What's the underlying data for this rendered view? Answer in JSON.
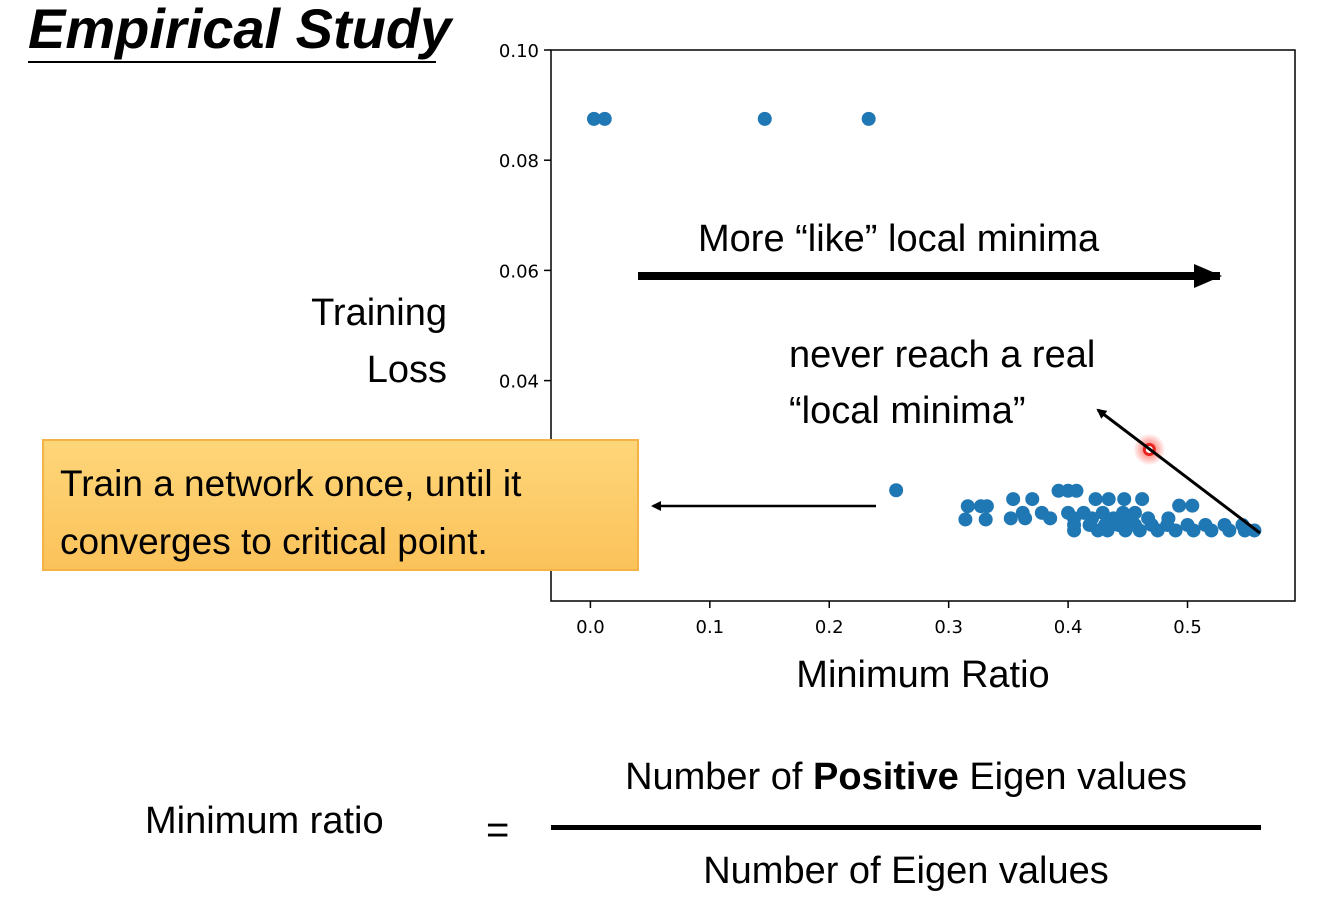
{
  "slide": {
    "title": "Empirical Study",
    "y_label_line1": "Training",
    "y_label_line2": "Loss",
    "callout_line1": "Train a network once, until it",
    "callout_line2": "converges to critical point.",
    "arrow_note": "More “like” local minima",
    "note_line1": "never reach a real",
    "note_line2": "“local minima”",
    "formula": {
      "lhs": "Minimum ratio",
      "equals": "=",
      "numerator_pre": "Number of ",
      "numerator_bold": "Positive",
      "numerator_post": " Eigen values",
      "denominator": "Number of Eigen values"
    }
  },
  "chart_data": {
    "type": "scatter",
    "xlabel": "Minimum Ratio",
    "ylabel": "Training Loss",
    "xlim": [
      -0.033,
      0.59
    ],
    "ylim": [
      0.0,
      0.1
    ],
    "x_ticks": [
      0.0,
      0.1,
      0.2,
      0.3,
      0.4,
      0.5
    ],
    "x_tick_labels": [
      "0.0",
      "0.1",
      "0.2",
      "0.3",
      "0.4",
      "0.5"
    ],
    "y_ticks": [
      0.04,
      0.06,
      0.08,
      0.1
    ],
    "y_tick_labels": [
      "0.04",
      "0.06",
      "0.08",
      "0.10"
    ],
    "point_color": "#1f77b4",
    "highlight_color": "#e8231e",
    "grid": false,
    "points": [
      [
        0.003,
        0.0875
      ],
      [
        0.012,
        0.0875
      ],
      [
        0.146,
        0.0875
      ],
      [
        0.233,
        0.0875
      ],
      [
        0.256,
        0.0201
      ],
      [
        0.316,
        0.0172
      ],
      [
        0.327,
        0.0172
      ],
      [
        0.332,
        0.0172
      ],
      [
        0.314,
        0.0148
      ],
      [
        0.331,
        0.0148
      ],
      [
        0.354,
        0.0185
      ],
      [
        0.37,
        0.0185
      ],
      [
        0.392,
        0.02
      ],
      [
        0.4,
        0.02
      ],
      [
        0.407,
        0.02
      ],
      [
        0.423,
        0.0185
      ],
      [
        0.434,
        0.0185
      ],
      [
        0.447,
        0.0185
      ],
      [
        0.462,
        0.0185
      ],
      [
        0.493,
        0.0173
      ],
      [
        0.504,
        0.0173
      ],
      [
        0.362,
        0.016
      ],
      [
        0.378,
        0.016
      ],
      [
        0.4,
        0.016
      ],
      [
        0.413,
        0.016
      ],
      [
        0.429,
        0.016
      ],
      [
        0.446,
        0.016
      ],
      [
        0.456,
        0.016
      ],
      [
        0.352,
        0.015
      ],
      [
        0.364,
        0.015
      ],
      [
        0.385,
        0.015
      ],
      [
        0.405,
        0.015
      ],
      [
        0.42,
        0.015
      ],
      [
        0.438,
        0.015
      ],
      [
        0.45,
        0.015
      ],
      [
        0.467,
        0.015
      ],
      [
        0.484,
        0.015
      ],
      [
        0.405,
        0.0138
      ],
      [
        0.418,
        0.0138
      ],
      [
        0.431,
        0.0138
      ],
      [
        0.442,
        0.0138
      ],
      [
        0.456,
        0.0138
      ],
      [
        0.47,
        0.0138
      ],
      [
        0.483,
        0.0138
      ],
      [
        0.5,
        0.0138
      ],
      [
        0.515,
        0.0138
      ],
      [
        0.531,
        0.0138
      ],
      [
        0.546,
        0.0138
      ],
      [
        0.405,
        0.0128
      ],
      [
        0.425,
        0.0128
      ],
      [
        0.433,
        0.0128
      ],
      [
        0.448,
        0.0128
      ],
      [
        0.46,
        0.0128
      ],
      [
        0.475,
        0.0128
      ],
      [
        0.49,
        0.0128
      ],
      [
        0.505,
        0.0128
      ],
      [
        0.52,
        0.0128
      ],
      [
        0.535,
        0.0128
      ],
      [
        0.548,
        0.0128
      ],
      [
        0.556,
        0.0128
      ]
    ],
    "highlight_point": [
      0.468,
      0.0275
    ]
  },
  "colors": {
    "callout_fill": "#fcc862",
    "callout_border": "#f5b347"
  }
}
